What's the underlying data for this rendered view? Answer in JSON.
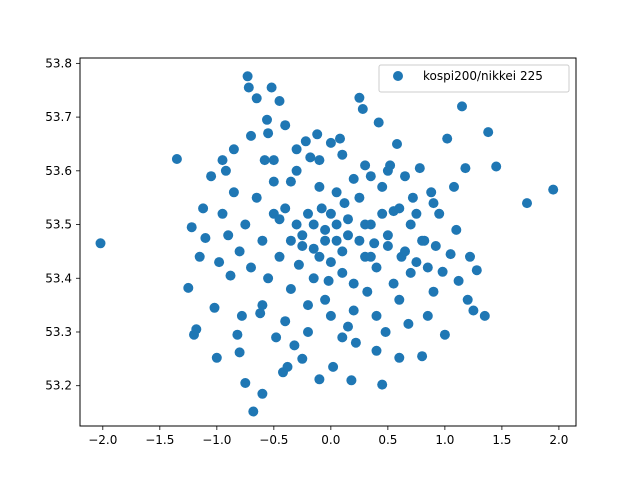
{
  "chart_data": {
    "type": "scatter",
    "title": "",
    "xlabel": "",
    "ylabel": "",
    "xlim": [
      -2.2,
      2.15
    ],
    "ylim": [
      53.125,
      53.81
    ],
    "xticks": [
      -2.0,
      -1.5,
      -1.0,
      -0.5,
      0.0,
      0.5,
      1.0,
      1.5,
      2.0
    ],
    "xtick_labels": [
      "−2.0",
      "−1.5",
      "−1.0",
      "−0.5",
      "0.0",
      "0.5",
      "1.0",
      "1.5",
      "2.0"
    ],
    "yticks": [
      53.2,
      53.3,
      53.4,
      53.5,
      53.6,
      53.7,
      53.8
    ],
    "ytick_labels": [
      "53.2",
      "53.3",
      "53.4",
      "53.5",
      "53.6",
      "53.7",
      "53.8"
    ],
    "grid": false,
    "legend": {
      "position": "top-right"
    },
    "series": [
      {
        "name": "kospi200/nikkei 225",
        "color": "#1f77b4",
        "marker": "circle",
        "points": [
          [
            -2.02,
            53.465
          ],
          [
            -1.35,
            53.622
          ],
          [
            -1.25,
            53.382
          ],
          [
            -1.22,
            53.495
          ],
          [
            -1.2,
            53.295
          ],
          [
            -1.18,
            53.305
          ],
          [
            -1.15,
            53.44
          ],
          [
            -1.12,
            53.53
          ],
          [
            -1.1,
            53.475
          ],
          [
            -1.05,
            53.59
          ],
          [
            -1.02,
            53.345
          ],
          [
            -1.0,
            53.252
          ],
          [
            -0.98,
            53.43
          ],
          [
            -0.95,
            53.62
          ],
          [
            -0.92,
            53.6
          ],
          [
            -0.88,
            53.405
          ],
          [
            -0.85,
            53.64
          ],
          [
            -0.82,
            53.295
          ],
          [
            -0.8,
            53.262
          ],
          [
            -0.78,
            53.33
          ],
          [
            -0.75,
            53.205
          ],
          [
            -0.73,
            53.776
          ],
          [
            -0.72,
            53.755
          ],
          [
            -0.7,
            53.665
          ],
          [
            -0.68,
            53.152
          ],
          [
            -0.65,
            53.735
          ],
          [
            -0.62,
            53.335
          ],
          [
            -0.6,
            53.185
          ],
          [
            -0.58,
            53.62
          ],
          [
            -0.56,
            53.695
          ],
          [
            -0.55,
            53.67
          ],
          [
            -0.52,
            53.755
          ],
          [
            -0.5,
            53.52
          ],
          [
            -0.48,
            53.29
          ],
          [
            -0.45,
            53.73
          ],
          [
            -0.42,
            53.225
          ],
          [
            -0.4,
            53.685
          ],
          [
            -0.38,
            53.235
          ],
          [
            -0.35,
            53.58
          ],
          [
            -0.32,
            53.275
          ],
          [
            -0.3,
            53.5
          ],
          [
            -0.28,
            53.425
          ],
          [
            -0.25,
            53.25
          ],
          [
            -0.22,
            53.655
          ],
          [
            -0.2,
            53.35
          ],
          [
            -0.18,
            53.625
          ],
          [
            -0.15,
            53.455
          ],
          [
            -0.12,
            53.668
          ],
          [
            -0.1,
            53.212
          ],
          [
            -0.08,
            53.53
          ],
          [
            -0.05,
            53.36
          ],
          [
            -0.02,
            53.395
          ],
          [
            0.0,
            53.652
          ],
          [
            0.02,
            53.235
          ],
          [
            0.05,
            53.47
          ],
          [
            0.08,
            53.66
          ],
          [
            0.1,
            53.29
          ],
          [
            0.12,
            53.54
          ],
          [
            0.15,
            53.31
          ],
          [
            0.18,
            53.21
          ],
          [
            0.2,
            53.585
          ],
          [
            0.22,
            53.28
          ],
          [
            0.25,
            53.736
          ],
          [
            0.28,
            53.715
          ],
          [
            0.3,
            53.5
          ],
          [
            0.32,
            53.375
          ],
          [
            0.35,
            53.59
          ],
          [
            0.38,
            53.465
          ],
          [
            0.4,
            53.265
          ],
          [
            0.42,
            53.69
          ],
          [
            0.45,
            53.202
          ],
          [
            0.48,
            53.3
          ],
          [
            0.5,
            53.48
          ],
          [
            0.52,
            53.61
          ],
          [
            0.55,
            53.525
          ],
          [
            0.58,
            53.65
          ],
          [
            0.6,
            53.252
          ],
          [
            0.62,
            53.44
          ],
          [
            0.65,
            53.59
          ],
          [
            0.68,
            53.315
          ],
          [
            0.7,
            53.5
          ],
          [
            0.72,
            53.55
          ],
          [
            0.75,
            53.43
          ],
          [
            0.78,
            53.605
          ],
          [
            0.8,
            53.255
          ],
          [
            0.82,
            53.47
          ],
          [
            0.85,
            53.33
          ],
          [
            0.88,
            53.56
          ],
          [
            0.9,
            53.375
          ],
          [
            0.92,
            53.46
          ],
          [
            0.95,
            53.52
          ],
          [
            0.98,
            53.412
          ],
          [
            1.0,
            53.295
          ],
          [
            1.02,
            53.66
          ],
          [
            1.05,
            53.445
          ],
          [
            1.08,
            53.57
          ],
          [
            1.1,
            53.49
          ],
          [
            1.12,
            53.395
          ],
          [
            1.15,
            53.72
          ],
          [
            1.18,
            53.605
          ],
          [
            1.2,
            53.36
          ],
          [
            1.22,
            53.44
          ],
          [
            1.25,
            53.34
          ],
          [
            1.28,
            53.415
          ],
          [
            1.35,
            53.33
          ],
          [
            1.38,
            53.672
          ],
          [
            1.45,
            53.608
          ],
          [
            1.72,
            53.54
          ],
          [
            1.95,
            53.565
          ],
          [
            -0.95,
            53.52
          ],
          [
            -0.9,
            53.48
          ],
          [
            -0.85,
            53.56
          ],
          [
            -0.8,
            53.45
          ],
          [
            -0.75,
            53.5
          ],
          [
            -0.7,
            53.42
          ],
          [
            -0.65,
            53.55
          ],
          [
            -0.6,
            53.47
          ],
          [
            -0.55,
            53.4
          ],
          [
            -0.5,
            53.58
          ],
          [
            -0.45,
            53.44
          ],
          [
            -0.4,
            53.53
          ],
          [
            -0.35,
            53.38
          ],
          [
            -0.3,
            53.6
          ],
          [
            -0.25,
            53.46
          ],
          [
            -0.2,
            53.52
          ],
          [
            -0.15,
            53.4
          ],
          [
            -0.1,
            53.57
          ],
          [
            -0.05,
            53.49
          ],
          [
            0.0,
            53.43
          ],
          [
            0.05,
            53.56
          ],
          [
            0.1,
            53.45
          ],
          [
            0.15,
            53.51
          ],
          [
            0.2,
            53.39
          ],
          [
            0.25,
            53.55
          ],
          [
            0.3,
            53.44
          ],
          [
            0.35,
            53.5
          ],
          [
            0.4,
            53.42
          ],
          [
            0.45,
            53.57
          ],
          [
            0.5,
            53.46
          ],
          [
            0.55,
            53.39
          ],
          [
            0.6,
            53.53
          ],
          [
            0.65,
            53.45
          ],
          [
            0.7,
            53.41
          ],
          [
            0.75,
            53.52
          ],
          [
            0.8,
            53.47
          ],
          [
            0.85,
            53.42
          ],
          [
            0.9,
            53.54
          ],
          [
            -0.6,
            53.35
          ],
          [
            -0.4,
            53.32
          ],
          [
            -0.2,
            53.3
          ],
          [
            0.0,
            53.33
          ],
          [
            0.2,
            53.34
          ],
          [
            0.4,
            53.33
          ],
          [
            0.6,
            53.36
          ],
          [
            -0.5,
            53.62
          ],
          [
            -0.3,
            53.64
          ],
          [
            -0.1,
            53.62
          ],
          [
            0.1,
            53.63
          ],
          [
            0.3,
            53.61
          ],
          [
            0.5,
            53.6
          ],
          [
            -0.25,
            53.48
          ],
          [
            -0.15,
            53.5
          ],
          [
            -0.05,
            53.47
          ],
          [
            0.05,
            53.5
          ],
          [
            0.15,
            53.48
          ],
          [
            0.25,
            53.47
          ],
          [
            -0.1,
            53.44
          ],
          [
            0.0,
            53.52
          ],
          [
            0.1,
            53.41
          ],
          [
            -0.35,
            53.47
          ],
          [
            0.35,
            53.44
          ],
          [
            -0.45,
            53.51
          ],
          [
            0.45,
            53.52
          ]
        ]
      }
    ]
  }
}
